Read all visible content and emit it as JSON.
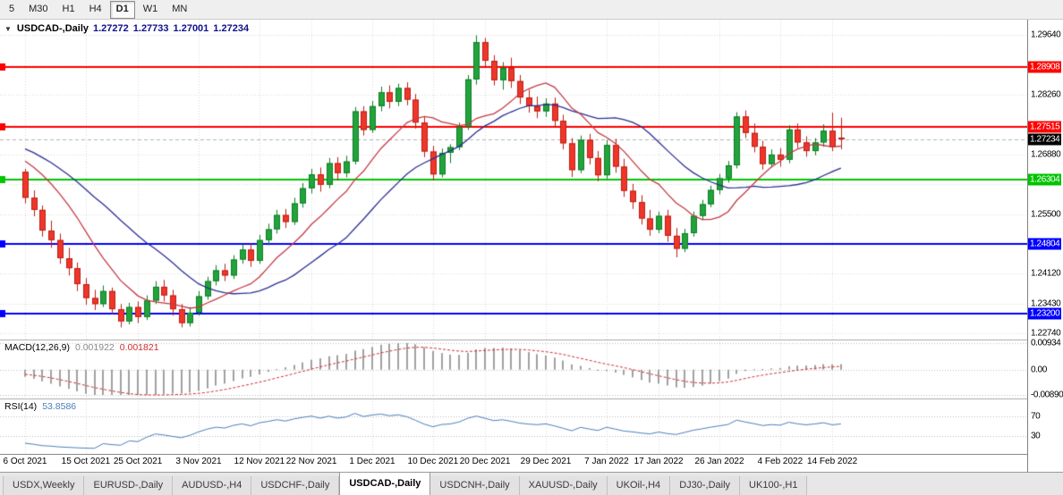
{
  "toolbar": {
    "timeframes": [
      "5",
      "M30",
      "H1",
      "H4",
      "D1",
      "W1",
      "MN"
    ],
    "active": "D1"
  },
  "chart_header": {
    "dropdown_icon": "▼",
    "symbol": "USDCAD-,Daily",
    "open": "1.27272",
    "high": "1.27733",
    "low": "1.27001",
    "close": "1.27234"
  },
  "colors": {
    "bull": "#22a33c",
    "bull_border": "#0e7d26",
    "bear": "#f0362a",
    "bear_border": "#bb1f15",
    "ma_fast": "#c43a44",
    "ma_slow": "#2b2f92",
    "macd_hist": "#a0a0a0",
    "macd_signal": "#cc2f2f",
    "rsi_line": "#4a7ebb",
    "grid": "#dadada",
    "level_dotted": "#bbbbbb",
    "line_red": "#ff0000",
    "line_green": "#00c400",
    "line_blue": "#0000ff",
    "price_tag": "#000000"
  },
  "chart_data": [
    {
      "id": "price",
      "type": "candlestick",
      "title": "USDCAD-,Daily",
      "y_axis": {
        "min": 1.2264,
        "max": 1.2996,
        "ticks": [
          {
            "v": 1.2964,
            "t": "1.29640"
          },
          {
            "v": 1.2895,
            "t": ""
          },
          {
            "v": 1.2826,
            "t": "1.28260"
          },
          {
            "v": 1.2757,
            "t": ""
          },
          {
            "v": 1.2688,
            "t": "1.26880"
          },
          {
            "v": 1.2619,
            "t": ""
          },
          {
            "v": 1.255,
            "t": "1.25500"
          },
          {
            "v": 1.2481,
            "t": ""
          },
          {
            "v": 1.2412,
            "t": "1.24120"
          },
          {
            "v": 1.2343,
            "t": "1.23430"
          },
          {
            "v": 1.2274,
            "t": "1.22740"
          }
        ]
      },
      "x_labels": [
        {
          "t": "6 Oct 2021",
          "i": 0
        },
        {
          "t": "15 Oct 2021",
          "i": 7
        },
        {
          "t": "25 Oct 2021",
          "i": 13
        },
        {
          "t": "3 Nov 2021",
          "i": 20
        },
        {
          "t": "12 Nov 2021",
          "i": 27
        },
        {
          "t": "22 Nov 2021",
          "i": 33
        },
        {
          "t": "1 Dec 2021",
          "i": 40
        },
        {
          "t": "10 Dec 2021",
          "i": 47
        },
        {
          "t": "20 Dec 2021",
          "i": 53
        },
        {
          "t": "29 Dec 2021",
          "i": 60
        },
        {
          "t": "7 Jan 2022",
          "i": 67
        },
        {
          "t": "17 Jan 2022",
          "i": 73
        },
        {
          "t": "26 Jan 2022",
          "i": 80
        },
        {
          "t": "4 Feb 2022",
          "i": 87
        },
        {
          "t": "14 Feb 2022",
          "i": 93
        }
      ],
      "hlines": [
        {
          "value": 1.28908,
          "label": "1.28908",
          "color": "#ff0000"
        },
        {
          "value": 1.27515,
          "label": "1.27515",
          "color": "#ff0000"
        },
        {
          "value": 1.26304,
          "label": "1.26304",
          "color": "#00c400"
        },
        {
          "value": 1.24804,
          "label": "1.24804",
          "color": "#0000ff"
        },
        {
          "value": 1.232,
          "label": "1.23200",
          "color": "#0000ff"
        }
      ],
      "current_price": {
        "value": 1.27234,
        "label": "1.27234",
        "color": "#000000"
      },
      "moving_averages": [
        {
          "period": 10,
          "color": "#c43a44"
        },
        {
          "period": 21,
          "color": "#2b2f92"
        }
      ],
      "candles": [
        [
          1.2648,
          1.2655,
          1.2575,
          1.2588
        ],
        [
          1.2588,
          1.2605,
          1.2545,
          1.256
        ],
        [
          1.256,
          1.257,
          1.2498,
          1.2512
        ],
        [
          1.2512,
          1.2535,
          1.2472,
          1.249
        ],
        [
          1.249,
          1.2505,
          1.2435,
          1.2448
        ],
        [
          1.2448,
          1.2472,
          1.2408,
          1.2425
        ],
        [
          1.2425,
          1.2438,
          1.2372,
          1.2388
        ],
        [
          1.2388,
          1.2402,
          1.234,
          1.2356
        ],
        [
          1.2356,
          1.2375,
          1.2328,
          1.2342
        ],
        [
          1.2342,
          1.2385,
          1.2335,
          1.2372
        ],
        [
          1.2372,
          1.238,
          1.2318,
          1.233
        ],
        [
          1.233,
          1.2342,
          1.2288,
          1.2302
        ],
        [
          1.2302,
          1.2345,
          1.2295,
          1.2335
        ],
        [
          1.2335,
          1.2348,
          1.2298,
          1.2312
        ],
        [
          1.2312,
          1.2362,
          1.2305,
          1.235
        ],
        [
          1.235,
          1.2395,
          1.2342,
          1.2382
        ],
        [
          1.2382,
          1.2398,
          1.2348,
          1.2362
        ],
        [
          1.2362,
          1.2375,
          1.2315,
          1.233
        ],
        [
          1.233,
          1.2342,
          1.2288,
          1.2298
        ],
        [
          1.2298,
          1.2335,
          1.229,
          1.2322
        ],
        [
          1.2322,
          1.2372,
          1.2315,
          1.236
        ],
        [
          1.236,
          1.2405,
          1.2352,
          1.2395
        ],
        [
          1.2395,
          1.2432,
          1.2385,
          1.242
        ],
        [
          1.242,
          1.2435,
          1.2395,
          1.2408
        ],
        [
          1.2408,
          1.2455,
          1.24,
          1.2445
        ],
        [
          1.2445,
          1.248,
          1.2435,
          1.2468
        ],
        [
          1.2468,
          1.2482,
          1.2428,
          1.2442
        ],
        [
          1.2442,
          1.2502,
          1.2435,
          1.249
        ],
        [
          1.249,
          1.2528,
          1.2478,
          1.2515
        ],
        [
          1.2515,
          1.256,
          1.2505,
          1.2548
        ],
        [
          1.2548,
          1.2562,
          1.2518,
          1.2532
        ],
        [
          1.2532,
          1.2588,
          1.2525,
          1.2575
        ],
        [
          1.2575,
          1.2622,
          1.2565,
          1.261
        ],
        [
          1.261,
          1.2655,
          1.2598,
          1.2642
        ],
        [
          1.2642,
          1.2658,
          1.2602,
          1.2618
        ],
        [
          1.2618,
          1.268,
          1.261,
          1.2668
        ],
        [
          1.2668,
          1.2682,
          1.2628,
          1.2645
        ],
        [
          1.2645,
          1.2685,
          1.2635,
          1.2672
        ],
        [
          1.2672,
          1.2798,
          1.2665,
          1.2788
        ],
        [
          1.2788,
          1.28,
          1.2732,
          1.2745
        ],
        [
          1.2745,
          1.2812,
          1.2738,
          1.28
        ],
        [
          1.28,
          1.2845,
          1.2788,
          1.2832
        ],
        [
          1.2832,
          1.2848,
          1.2795,
          1.281
        ],
        [
          1.281,
          1.2852,
          1.28,
          1.2842
        ],
        [
          1.2842,
          1.2855,
          1.2802,
          1.2815
        ],
        [
          1.2815,
          1.2828,
          1.2748,
          1.2762
        ],
        [
          1.2762,
          1.2775,
          1.2682,
          1.2695
        ],
        [
          1.2695,
          1.2708,
          1.2628,
          1.2642
        ],
        [
          1.2642,
          1.2702,
          1.2635,
          1.2692
        ],
        [
          1.2692,
          1.2712,
          1.2668,
          1.2705
        ],
        [
          1.2705,
          1.2762,
          1.2698,
          1.2752
        ],
        [
          1.2752,
          1.2872,
          1.2745,
          1.2862
        ],
        [
          1.2862,
          1.2964,
          1.285,
          1.2948
        ],
        [
          1.2948,
          1.2958,
          1.289,
          1.2905
        ],
        [
          1.2905,
          1.2918,
          1.2848,
          1.286
        ],
        [
          1.286,
          1.2902,
          1.2838,
          1.2888
        ],
        [
          1.2888,
          1.2912,
          1.2842,
          1.2858
        ],
        [
          1.2858,
          1.2872,
          1.2805,
          1.282
        ],
        [
          1.282,
          1.2838,
          1.2785,
          1.28
        ],
        [
          1.28,
          1.2822,
          1.2772,
          1.2788
        ],
        [
          1.2788,
          1.2818,
          1.2775,
          1.2806
        ],
        [
          1.2806,
          1.282,
          1.2752,
          1.2766
        ],
        [
          1.2766,
          1.278,
          1.27,
          1.2714
        ],
        [
          1.2714,
          1.2726,
          1.2636,
          1.2652
        ],
        [
          1.2652,
          1.2732,
          1.2645,
          1.2722
        ],
        [
          1.2722,
          1.2736,
          1.2665,
          1.268
        ],
        [
          1.268,
          1.2696,
          1.2626,
          1.264
        ],
        [
          1.264,
          1.2722,
          1.2632,
          1.271
        ],
        [
          1.271,
          1.2724,
          1.2646,
          1.266
        ],
        [
          1.266,
          1.2678,
          1.259,
          1.2604
        ],
        [
          1.2604,
          1.262,
          1.2562,
          1.2578
        ],
        [
          1.2578,
          1.2594,
          1.2526,
          1.254
        ],
        [
          1.254,
          1.256,
          1.25,
          1.2514
        ],
        [
          1.2514,
          1.2556,
          1.2506,
          1.2546
        ],
        [
          1.2546,
          1.256,
          1.2486,
          1.25
        ],
        [
          1.25,
          1.2518,
          1.245,
          1.247
        ],
        [
          1.247,
          1.2516,
          1.2462,
          1.2506
        ],
        [
          1.2506,
          1.2556,
          1.2498,
          1.2546
        ],
        [
          1.2546,
          1.2583,
          1.2536,
          1.2573
        ],
        [
          1.2573,
          1.2616,
          1.2566,
          1.2606
        ],
        [
          1.2606,
          1.2643,
          1.2596,
          1.2633
        ],
        [
          1.2633,
          1.2673,
          1.2623,
          1.2663
        ],
        [
          1.2663,
          1.2786,
          1.2656,
          1.2776
        ],
        [
          1.2776,
          1.279,
          1.2726,
          1.2738
        ],
        [
          1.2738,
          1.276,
          1.2693,
          1.2706
        ],
        [
          1.2706,
          1.272,
          1.2653,
          1.2666
        ],
        [
          1.2666,
          1.27,
          1.2658,
          1.2688
        ],
        [
          1.2688,
          1.2703,
          1.266,
          1.2676
        ],
        [
          1.2676,
          1.2756,
          1.2668,
          1.2746
        ],
        [
          1.2746,
          1.276,
          1.2703,
          1.2716
        ],
        [
          1.2716,
          1.273,
          1.2683,
          1.2696
        ],
        [
          1.2696,
          1.2726,
          1.2686,
          1.2716
        ],
        [
          1.2716,
          1.2758,
          1.2706,
          1.2743
        ],
        [
          1.2743,
          1.2785,
          1.2696,
          1.2705
        ],
        [
          1.27272,
          1.27733,
          1.27001,
          1.27234
        ]
      ]
    },
    {
      "id": "macd",
      "type": "bar",
      "label": "MACD(12,26,9)",
      "params": [
        12,
        26,
        9
      ],
      "value_main": "0.001922",
      "value_signal": "0.001821",
      "y_ticks": [
        {
          "v": 0.00934,
          "t": "0.00934"
        },
        {
          "v": 0,
          "t": "0.00"
        },
        {
          "v": -0.0089,
          "t": "-0.00890"
        }
      ],
      "range": {
        "min": -0.0089,
        "max": 0.00934
      }
    },
    {
      "id": "rsi",
      "type": "line",
      "label": "RSI(14)",
      "value": "53.8586",
      "levels": [
        {
          "v": 70,
          "t": "70"
        },
        {
          "v": 30,
          "t": "30"
        }
      ],
      "range": {
        "min": 0,
        "max": 100
      }
    }
  ],
  "tabs": {
    "items": [
      "USDX,Weekly",
      "EURUSD-,Daily",
      "AUDUSD-,H4",
      "USDCHF-,Daily",
      "USDCAD-,Daily",
      "USDCNH-,Daily",
      "XAUUSD-,Daily",
      "UKOil-,H4",
      "DJ30-,Daily",
      "UK100-,H1"
    ],
    "active": "USDCAD-,Daily"
  }
}
